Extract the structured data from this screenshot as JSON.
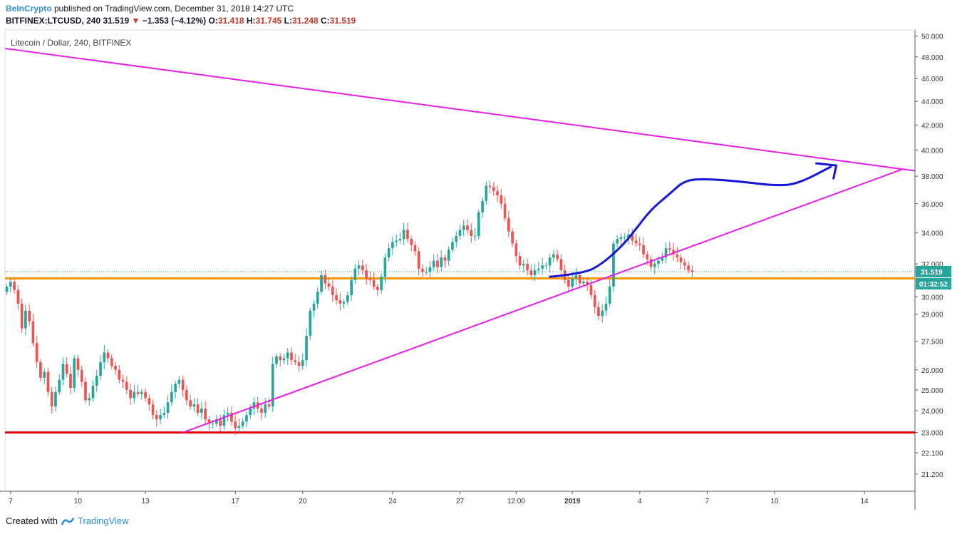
{
  "header": {
    "brand": "BeInCrypto",
    "published": " published on TradingView.com, December 31, 2018 14:27 UTC",
    "symbol": "BITFINEX:LTCUSD, 240",
    "last": "31.519",
    "arrow": "▼",
    "change": "−1.353 (−4.12%)",
    "o_label": "O:",
    "o_val": "31.418",
    "h_label": "H:",
    "h_val": "31.745",
    "l_label": "L:",
    "l_val": "31.248",
    "c_label": "C:",
    "c_val": "31.519"
  },
  "footer": {
    "created": "Created with",
    "brand": "TradingView"
  },
  "colors": {
    "up": "#26a69a",
    "down": "#ef5350",
    "trend": "#e61ee6",
    "support_red": "#e00000",
    "support_orange": "#ff9900",
    "sketch": "#1515d6",
    "price_label": "#26a69a",
    "timer_label": "#26a69a"
  },
  "chart_data": {
    "type": "candlestick",
    "legend": "Litecoin / Dollar, 240, BITFINEX",
    "y_scale": "log",
    "ylim": [
      20.5,
      50.6
    ],
    "y_ticks": [
      21.2,
      22.1,
      23.0,
      24.0,
      25.0,
      26.0,
      27.5,
      29.0,
      30.0,
      32.0,
      34.0,
      36.0,
      38.0,
      40.0,
      42.0,
      44.0,
      46.0,
      48.0,
      50.0
    ],
    "y_tick_labels": [
      "21.200",
      "22.100",
      "23.000",
      "24.000",
      "25.000",
      "26.000",
      "27.500",
      "29.000",
      "30.000",
      "32.000",
      "34.000",
      "36.000",
      "38.000",
      "40.000",
      "42.000",
      "44.000",
      "46.000",
      "48.000",
      "50.000"
    ],
    "xlim": [
      "2018-12-06 18:00",
      "2019-01-16 06:00"
    ],
    "x_ticks": [
      {
        "t": "2018-12-07 00:00",
        "label": "7"
      },
      {
        "t": "2018-12-10 00:00",
        "label": "10"
      },
      {
        "t": "2018-12-13 00:00",
        "label": "13"
      },
      {
        "t": "2018-12-17 00:00",
        "label": "17"
      },
      {
        "t": "2018-12-20 00:00",
        "label": "20"
      },
      {
        "t": "2018-12-24 00:00",
        "label": "24"
      },
      {
        "t": "2018-12-27 00:00",
        "label": "27"
      },
      {
        "t": "2018-12-29 12:00",
        "label": "12:00"
      },
      {
        "t": "2019-01-01 00:00",
        "label": "2019"
      },
      {
        "t": "2019-01-04 00:00",
        "label": "4"
      },
      {
        "t": "2019-01-07 00:00",
        "label": "7"
      },
      {
        "t": "2019-01-10 00:00",
        "label": "10"
      },
      {
        "t": "2019-01-14 00:00",
        "label": "14"
      }
    ],
    "candle_hours": 4,
    "series_start": "2018-12-06 20:00",
    "closes": [
      30.6,
      30.9,
      30.4,
      29.6,
      28.2,
      29.2,
      28.6,
      27.4,
      26.4,
      25.6,
      25.9,
      24.9,
      24.2,
      24.9,
      25.5,
      26.3,
      25.8,
      25.1,
      26.6,
      26.0,
      25.4,
      24.5,
      24.6,
      25.2,
      25.7,
      26.4,
      26.9,
      26.6,
      26.2,
      26.0,
      25.5,
      25.4,
      25.0,
      24.6,
      24.9,
      24.8,
      24.9,
      24.6,
      24.3,
      23.8,
      23.6,
      23.8,
      23.9,
      24.4,
      24.9,
      25.3,
      25.5,
      25.0,
      24.5,
      24.2,
      24.3,
      23.9,
      24.1,
      23.6,
      23.4,
      23.4,
      23.6,
      23.3,
      23.8,
      23.9,
      23.5,
      23.2,
      23.3,
      23.5,
      23.8,
      24.1,
      24.4,
      24.1,
      23.9,
      24.3,
      24.2,
      26.3,
      26.7,
      26.5,
      26.6,
      26.9,
      26.5,
      26.4,
      26.2,
      26.5,
      27.8,
      29.2,
      29.6,
      30.3,
      31.3,
      30.8,
      30.6,
      30.1,
      29.8,
      29.6,
      29.7,
      30.1,
      31.0,
      31.7,
      31.9,
      31.6,
      31.1,
      31.0,
      30.6,
      30.4,
      31.2,
      32.4,
      33.0,
      33.4,
      33.5,
      33.6,
      34.2,
      33.6,
      33.2,
      32.8,
      31.7,
      31.5,
      31.5,
      31.8,
      32.2,
      31.8,
      32.4,
      32.2,
      32.9,
      33.4,
      33.8,
      34.2,
      34.5,
      34.2,
      33.8,
      33.8,
      35.4,
      36.2,
      37.3,
      37.2,
      36.9,
      36.6,
      36.0,
      35.0,
      34.1,
      33.3,
      32.5,
      31.9,
      32.0,
      31.6,
      31.3,
      31.6,
      31.7,
      31.9,
      31.9,
      32.4,
      32.6,
      32.3,
      31.6,
      31.0,
      30.6,
      31.1,
      31.3,
      30.8,
      30.9,
      30.7,
      30.1,
      29.4,
      28.9,
      29.2,
      29.6,
      30.6,
      33.3,
      33.6,
      33.7,
      33.7,
      33.9,
      33.5,
      33.3,
      33.2,
      32.6,
      32.3,
      31.8,
      32.0,
      32.2,
      32.4,
      33.0,
      32.9,
      32.6,
      32.4,
      32.1,
      31.9,
      31.6,
      31.5
    ],
    "annotations": [
      {
        "type": "trendline",
        "color": "trend",
        "from": [
          "2018-12-06 18:00",
          48.8
        ],
        "to": [
          "2019-01-16 06:00",
          38.4
        ]
      },
      {
        "type": "trendline",
        "color": "trend",
        "from": [
          "2018-12-14 16:00",
          23.0
        ],
        "to": [
          "2019-01-15 16:00",
          38.5
        ]
      },
      {
        "type": "hline",
        "color": "support_red",
        "y": 23.0
      },
      {
        "type": "hline",
        "color": "support_orange",
        "y": 31.1
      },
      {
        "type": "hline_dotted",
        "color": "price_label",
        "y": 31.519
      },
      {
        "type": "freehand",
        "color": "sketch",
        "points": [
          [
            "2018-12-31 00:00",
            31.2
          ],
          [
            "2019-01-01 12:00",
            31.4
          ],
          [
            "2019-01-02 08:00",
            32.0
          ],
          [
            "2019-01-03 06:00",
            33.2
          ],
          [
            "2019-01-03 18:00",
            34.1
          ],
          [
            "2019-01-04 12:00",
            35.6
          ],
          [
            "2019-01-05 08:00",
            36.7
          ],
          [
            "2019-01-06 00:00",
            37.7
          ],
          [
            "2019-01-07 00:00",
            37.8
          ],
          [
            "2019-01-08 12:00",
            37.6
          ],
          [
            "2019-01-10 00:00",
            37.3
          ],
          [
            "2019-01-11 00:00",
            37.4
          ],
          [
            "2019-01-12 12:00",
            38.7
          ]
        ]
      },
      {
        "type": "arrowhead",
        "color": "sketch",
        "at": [
          "2019-01-12 18:00",
          38.8
        ]
      }
    ],
    "price_label": "31.519",
    "timer_label": "01:32:52"
  }
}
